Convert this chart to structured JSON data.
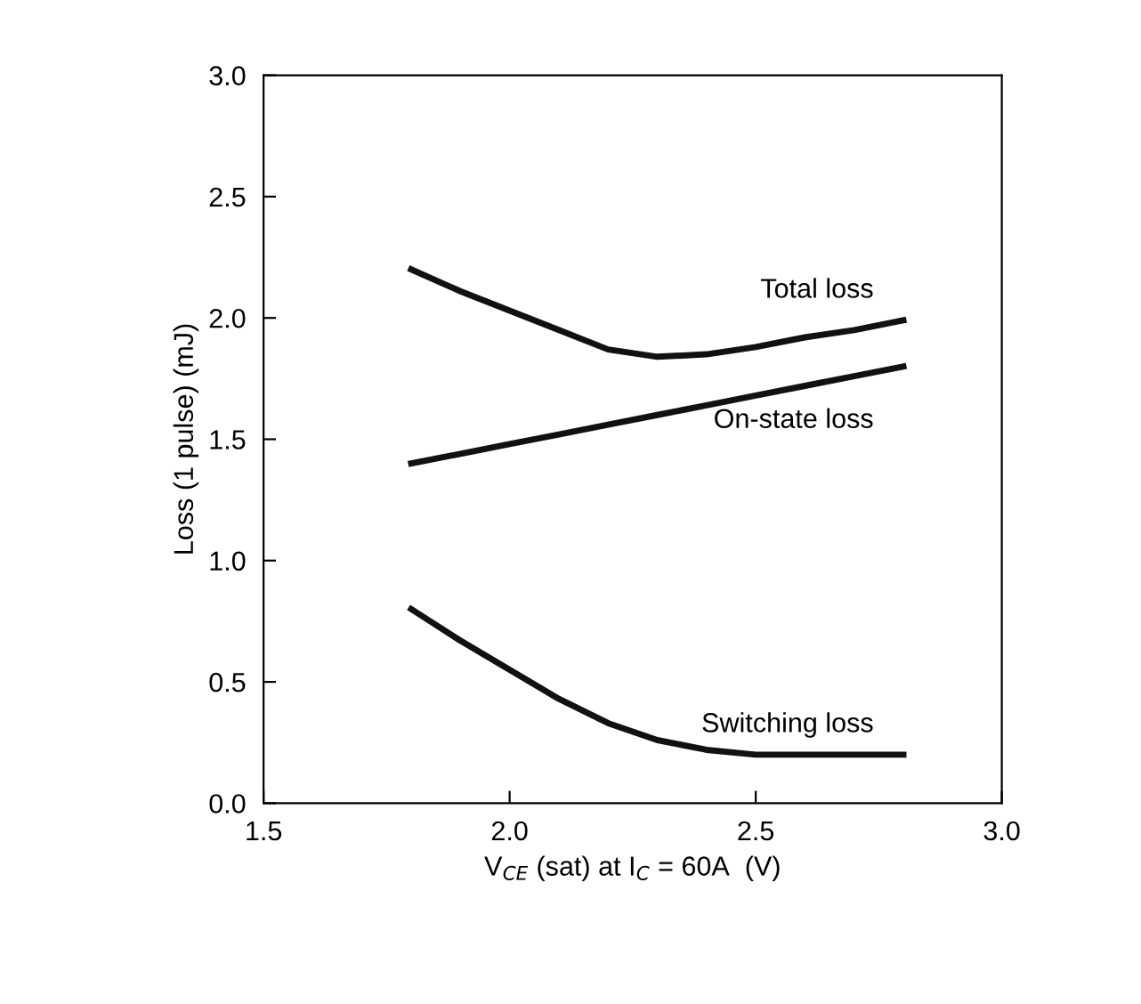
{
  "chart_data": {
    "type": "line",
    "xlabel": "V$_{CE}$ (sat) at I$_{C}$ = 60A  (V)",
    "ylabel": "Loss (1 pulse) (mJ)",
    "x": [
      1.8,
      1.9,
      2.0,
      2.1,
      2.2,
      2.3,
      2.4,
      2.5,
      2.6,
      2.7,
      2.8
    ],
    "series": [
      {
        "name": "Total loss",
        "color": "#111111",
        "values": [
          2.2,
          2.11,
          2.03,
          1.95,
          1.87,
          1.84,
          1.85,
          1.88,
          1.92,
          1.95,
          1.99
        ]
      },
      {
        "name": "On-state loss",
        "color": "#111111",
        "values": [
          1.4,
          1.44,
          1.48,
          1.52,
          1.56,
          1.6,
          1.64,
          1.68,
          1.72,
          1.76,
          1.8
        ]
      },
      {
        "name": "Switching loss",
        "color": "#111111",
        "values": [
          0.8,
          0.67,
          0.55,
          0.43,
          0.33,
          0.26,
          0.22,
          0.2,
          0.2,
          0.2,
          0.2
        ]
      }
    ],
    "xlim": [
      1.5,
      3.0
    ],
    "xticks": [
      {
        "value": 1.5,
        "label": "1.5"
      },
      {
        "value": 2.0,
        "label": "2.0"
      },
      {
        "value": 2.5,
        "label": "2.5"
      },
      {
        "value": 3.0,
        "label": "3.0"
      }
    ],
    "ylim": [
      0,
      3.0
    ],
    "yticks": [
      {
        "value": 0,
        "label": "0.0"
      },
      {
        "value": 0.5,
        "label": "0.5"
      },
      {
        "value": 1.0,
        "label": "1.0"
      },
      {
        "value": 1.5,
        "label": "1.5"
      },
      {
        "value": 2.0,
        "label": "2.0"
      },
      {
        "value": 2.5,
        "label": "2.5"
      },
      {
        "value": 3.0,
        "label": "3.0"
      }
    ],
    "grid": false,
    "legend": false,
    "marker": "none",
    "line_style": "solid"
  }
}
